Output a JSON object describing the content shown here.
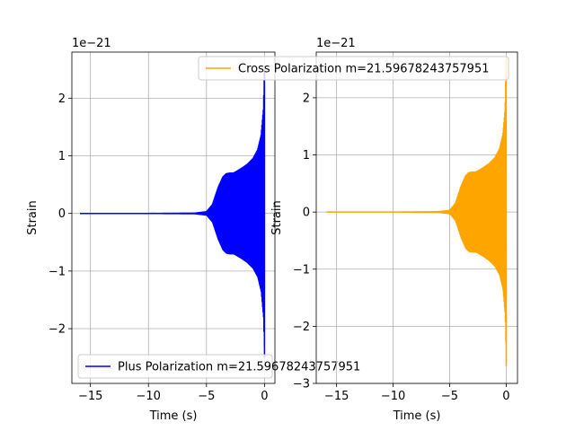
{
  "chart_data": [
    {
      "type": "line",
      "title": "",
      "xlabel": "Time (s)",
      "ylabel": "Strain",
      "offset_text": "1e−21",
      "xlim": [
        -16.6,
        0.9
      ],
      "ylim": [
        -2.95,
        2.8
      ],
      "xticks": [
        -15,
        -10,
        -5,
        0
      ],
      "xtick_labels": [
        "−15",
        "−10",
        "−5",
        "0"
      ],
      "yticks": [
        -2,
        -1,
        0,
        1,
        2
      ],
      "ytick_labels": [
        "−2",
        "−1",
        "0",
        "1",
        "2"
      ],
      "grid": true,
      "legend_position": "lower left",
      "series": [
        {
          "name": "Plus Polarization m=21.59678243757951",
          "color": "#0000ff",
          "x": [
            -15.9,
            -10,
            -6,
            -5,
            -4.5,
            -4,
            -3.6,
            -3.3,
            -3,
            -2.7,
            -2.5,
            -2,
            -1.5,
            -1,
            -0.6,
            -0.3,
            -0.1,
            0
          ],
          "amplitude": [
            0.0,
            0.0,
            0.005,
            0.03,
            0.15,
            0.45,
            0.63,
            0.69,
            0.7,
            0.7,
            0.72,
            0.78,
            0.85,
            0.95,
            1.1,
            1.35,
            1.8,
            2.5
          ]
        }
      ]
    },
    {
      "type": "line",
      "title": "",
      "xlabel": "Time (s)",
      "ylabel": "Strain",
      "offset_text": "1e−21",
      "xlim": [
        -16.8,
        1.0
      ],
      "ylim": [
        -3.0,
        2.8
      ],
      "xticks": [
        -15,
        -10,
        -5,
        0
      ],
      "xtick_labels": [
        "−15",
        "−10",
        "−5",
        "0"
      ],
      "yticks": [
        -3,
        -2,
        -1,
        0,
        1,
        2
      ],
      "ytick_labels": [
        "−3",
        "−2",
        "−1",
        "0",
        "1",
        "2"
      ],
      "grid": true,
      "legend_position": "upper right",
      "series": [
        {
          "name": "Cross Polarization m=21.59678243757951",
          "color": "#ffa500",
          "x": [
            -15.9,
            -10,
            -6,
            -5,
            -4.5,
            -4,
            -3.6,
            -3.3,
            -3,
            -2.7,
            -2.5,
            -2,
            -1.5,
            -1,
            -0.6,
            -0.3,
            -0.1,
            0
          ],
          "amplitude": [
            0.0,
            0.0,
            0.005,
            0.03,
            0.15,
            0.45,
            0.63,
            0.69,
            0.7,
            0.7,
            0.72,
            0.78,
            0.85,
            0.95,
            1.1,
            1.35,
            1.8,
            2.7
          ]
        }
      ]
    }
  ]
}
